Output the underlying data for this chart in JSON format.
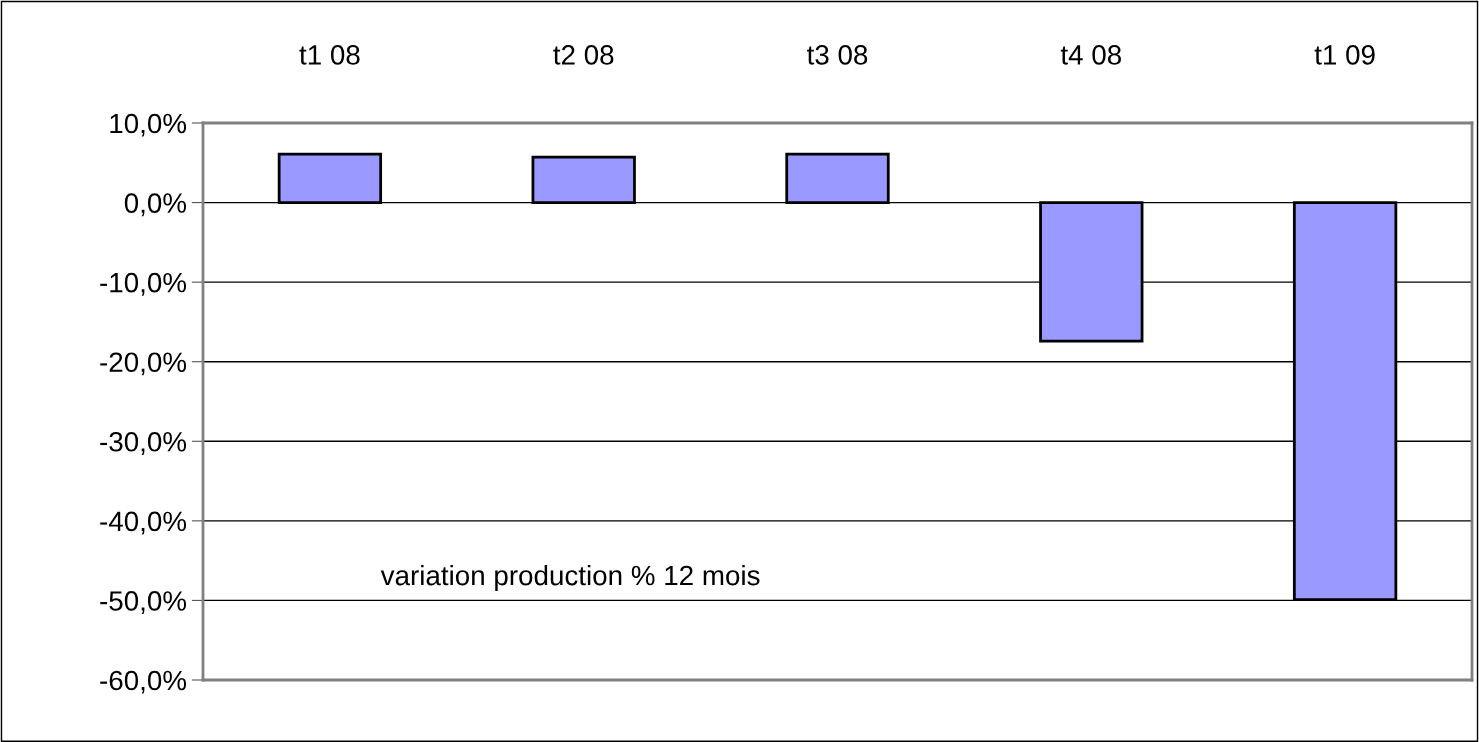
{
  "chart_data": {
    "type": "bar",
    "categories": [
      "t1 08",
      "t2 08",
      "t3 08",
      "t4 08",
      "t1 09"
    ],
    "values": [
      6.1,
      5.7,
      6.1,
      -17.4,
      -49.9
    ],
    "color": "#9999ff",
    "ylim": [
      -60,
      10
    ],
    "yticks": [
      {
        "value": 10,
        "label": "10,0%"
      },
      {
        "value": 0,
        "label": "0,0%"
      },
      {
        "value": -10,
        "label": "-10,0%"
      },
      {
        "value": -20,
        "label": "-20,0%"
      },
      {
        "value": -30,
        "label": "-30,0%"
      },
      {
        "value": -40,
        "label": "-40,0%"
      },
      {
        "value": -50,
        "label": "-50,0%"
      },
      {
        "value": -60,
        "label": "-60,0%"
      }
    ],
    "grid": "y",
    "legend": false,
    "annotations": [
      "variation production % 12 mois"
    ]
  }
}
